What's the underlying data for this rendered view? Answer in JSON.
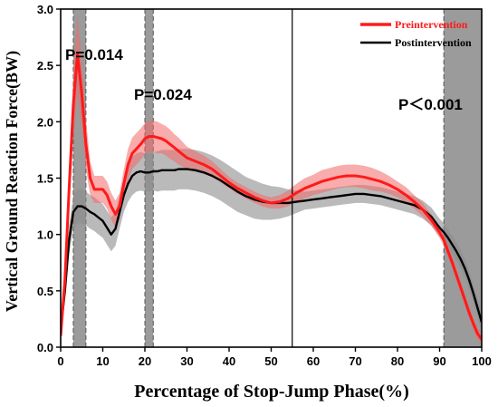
{
  "chart_data": {
    "type": "line",
    "title": "",
    "xlabel": "Percentage of Stop-Jump Phase(%)",
    "ylabel": "Vertical Ground Reaction Force(BW)",
    "xlim": [
      0,
      100
    ],
    "ylim": [
      0,
      3.0
    ],
    "xticks": [
      0,
      10,
      20,
      30,
      40,
      50,
      60,
      70,
      80,
      90,
      100
    ],
    "yticks": [
      0.0,
      0.5,
      1.0,
      1.5,
      2.0,
      2.5,
      3.0
    ],
    "x_tick_labels": [
      "0",
      "10",
      "20",
      "30",
      "40",
      "50",
      "60",
      "70",
      "80",
      "90",
      "100"
    ],
    "y_tick_labels": [
      "0.0",
      "0.5",
      "1.0",
      "1.5",
      "2.0",
      "2.5",
      "3.0"
    ],
    "legend_position": "top-right",
    "shaded_regions": [
      {
        "x0": 3,
        "x1": 6,
        "label": "P=0.014"
      },
      {
        "x0": 20,
        "x1": 22,
        "label": "P=0.024"
      },
      {
        "x0": 91,
        "x1": 100,
        "label": "P＜0.001"
      }
    ],
    "vertical_lines": [
      55
    ],
    "series": [
      {
        "name": "Preintervention",
        "color": "#ff1a1a",
        "band_color": "#f26868",
        "x": [
          0,
          1,
          2,
          3,
          4,
          5,
          6,
          7,
          8,
          9,
          10,
          11,
          12,
          13,
          14,
          15,
          16,
          17,
          18,
          19,
          20,
          21,
          22,
          23,
          24,
          25,
          26,
          27,
          28,
          29,
          30,
          32,
          34,
          36,
          38,
          40,
          42,
          44,
          46,
          48,
          50,
          52,
          54,
          56,
          58,
          60,
          62,
          64,
          66,
          68,
          70,
          72,
          74,
          76,
          78,
          80,
          82,
          84,
          86,
          88,
          90,
          91,
          92,
          93,
          94,
          95,
          96,
          97,
          98,
          99,
          100
        ],
        "y": [
          0.1,
          0.6,
          1.4,
          2.15,
          2.6,
          2.25,
          1.8,
          1.5,
          1.4,
          1.4,
          1.4,
          1.35,
          1.25,
          1.18,
          1.25,
          1.45,
          1.62,
          1.72,
          1.76,
          1.8,
          1.85,
          1.87,
          1.87,
          1.86,
          1.85,
          1.83,
          1.8,
          1.77,
          1.74,
          1.71,
          1.68,
          1.65,
          1.62,
          1.58,
          1.52,
          1.46,
          1.41,
          1.37,
          1.33,
          1.3,
          1.28,
          1.29,
          1.32,
          1.37,
          1.41,
          1.44,
          1.47,
          1.49,
          1.51,
          1.52,
          1.52,
          1.51,
          1.49,
          1.47,
          1.44,
          1.4,
          1.35,
          1.29,
          1.22,
          1.13,
          1.02,
          0.95,
          0.85,
          0.75,
          0.64,
          0.53,
          0.42,
          0.31,
          0.21,
          0.12,
          0.07
        ],
        "sd": [
          0.05,
          0.1,
          0.2,
          0.3,
          0.35,
          0.3,
          0.22,
          0.15,
          0.12,
          0.12,
          0.12,
          0.12,
          0.12,
          0.12,
          0.12,
          0.13,
          0.14,
          0.14,
          0.14,
          0.14,
          0.14,
          0.14,
          0.14,
          0.14,
          0.13,
          0.13,
          0.13,
          0.12,
          0.12,
          0.11,
          0.1,
          0.09,
          0.08,
          0.07,
          0.06,
          0.05,
          0.05,
          0.05,
          0.05,
          0.05,
          0.05,
          0.06,
          0.07,
          0.08,
          0.09,
          0.09,
          0.1,
          0.1,
          0.1,
          0.1,
          0.1,
          0.1,
          0.1,
          0.09,
          0.08,
          0.07,
          0.07,
          0.06,
          0.06,
          0.05,
          0.05,
          0.05,
          0.05,
          0.05,
          0.05,
          0.05,
          0.05,
          0.05,
          0.05,
          0.05,
          0.05
        ]
      },
      {
        "name": "Postintervention",
        "color": "#000000",
        "band_color": "#8c8c8c",
        "x": [
          0,
          1,
          2,
          3,
          4,
          5,
          6,
          7,
          8,
          9,
          10,
          11,
          12,
          13,
          14,
          15,
          16,
          17,
          18,
          19,
          20,
          21,
          22,
          23,
          24,
          25,
          26,
          27,
          28,
          29,
          30,
          32,
          34,
          36,
          38,
          40,
          42,
          44,
          46,
          48,
          50,
          52,
          54,
          56,
          58,
          60,
          62,
          64,
          66,
          68,
          70,
          72,
          74,
          76,
          78,
          80,
          82,
          84,
          86,
          88,
          90,
          91,
          92,
          93,
          94,
          95,
          96,
          97,
          98,
          99,
          100
        ],
        "y": [
          0.15,
          0.5,
          0.95,
          1.2,
          1.25,
          1.25,
          1.23,
          1.2,
          1.18,
          1.15,
          1.12,
          1.06,
          1.0,
          1.05,
          1.2,
          1.35,
          1.45,
          1.52,
          1.55,
          1.56,
          1.55,
          1.55,
          1.56,
          1.56,
          1.57,
          1.57,
          1.57,
          1.57,
          1.58,
          1.58,
          1.58,
          1.57,
          1.55,
          1.52,
          1.48,
          1.43,
          1.38,
          1.34,
          1.31,
          1.29,
          1.28,
          1.28,
          1.28,
          1.29,
          1.3,
          1.31,
          1.32,
          1.33,
          1.34,
          1.35,
          1.36,
          1.36,
          1.35,
          1.34,
          1.32,
          1.3,
          1.28,
          1.26,
          1.22,
          1.16,
          1.06,
          1.02,
          0.97,
          0.91,
          0.85,
          0.78,
          0.7,
          0.6,
          0.48,
          0.35,
          0.22
        ],
        "sd": [
          0.05,
          0.1,
          0.13,
          0.15,
          0.15,
          0.15,
          0.15,
          0.15,
          0.15,
          0.15,
          0.15,
          0.15,
          0.15,
          0.15,
          0.15,
          0.15,
          0.16,
          0.17,
          0.17,
          0.17,
          0.17,
          0.17,
          0.17,
          0.18,
          0.18,
          0.18,
          0.18,
          0.18,
          0.18,
          0.18,
          0.18,
          0.18,
          0.18,
          0.18,
          0.18,
          0.18,
          0.18,
          0.17,
          0.17,
          0.16,
          0.15,
          0.14,
          0.12,
          0.1,
          0.08,
          0.08,
          0.08,
          0.08,
          0.08,
          0.08,
          0.08,
          0.08,
          0.08,
          0.08,
          0.08,
          0.08,
          0.08,
          0.08,
          0.08,
          0.08,
          0.08,
          0.08,
          0.08,
          0.08,
          0.08,
          0.08,
          0.08,
          0.08,
          0.08,
          0.08,
          0.08
        ]
      }
    ]
  }
}
